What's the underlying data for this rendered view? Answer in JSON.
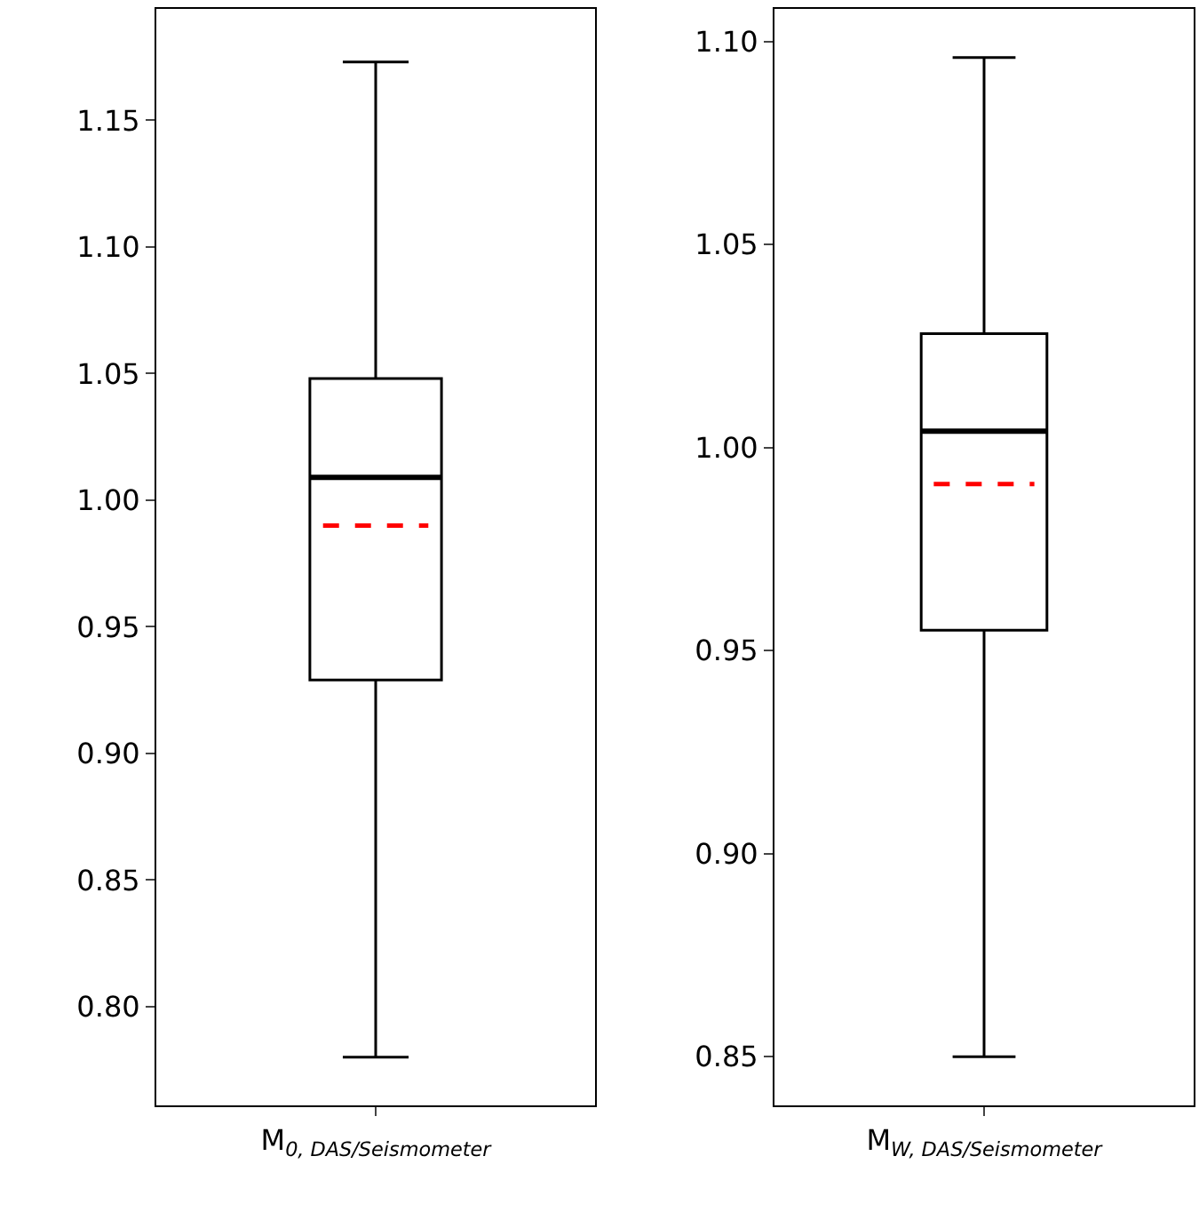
{
  "chart_data": [
    {
      "type": "box",
      "categories": [
        "M$_{0, DAS/Seismometer}$"
      ],
      "boxes": [
        {
          "low": 0.78,
          "q1": 0.929,
          "median": 1.009,
          "q3": 1.048,
          "high": 1.173,
          "mean": 0.99
        }
      ],
      "color": "#000000",
      "ylim": [
        0.761,
        1.194
      ],
      "yticks": [
        {
          "value": 0.8,
          "label": "0.80"
        },
        0.85,
        {
          "value": 0.9,
          "label": "0.90"
        },
        0.95,
        {
          "value": 1.0,
          "label": "1.00"
        },
        1.05,
        {
          "value": 1.1,
          "label": "1.10"
        },
        1.15
      ]
    },
    {
      "type": "box",
      "categories": [
        "M$_{W, DAS/Seismometer}$"
      ],
      "boxes": [
        {
          "low": 0.85,
          "q1": 0.955,
          "median": 1.004,
          "q3": 1.028,
          "high": 1.096,
          "mean": 0.991
        }
      ],
      "color": "#000000",
      "ylim": [
        0.838,
        1.108
      ],
      "yticks": [
        0.85,
        {
          "value": 0.9,
          "label": "0.90"
        },
        0.95,
        {
          "value": 1.0,
          "label": "1.00"
        },
        1.05,
        {
          "value": 1.1,
          "label": "1.10"
        }
      ]
    }
  ]
}
